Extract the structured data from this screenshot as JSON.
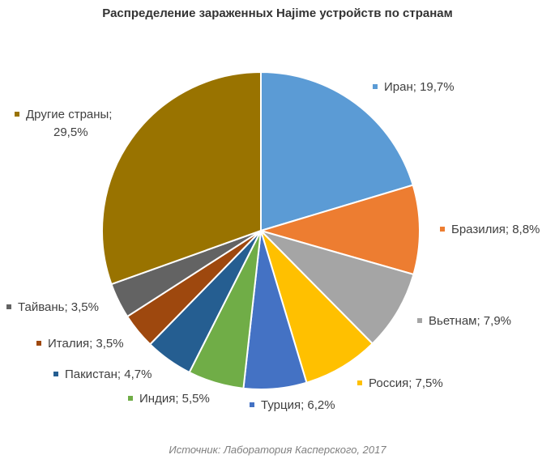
{
  "chart_data": {
    "type": "pie",
    "title": "Распределение зараженных Hajime устройств по странам",
    "source": "Источник: Лаборатория Касперского, 2017",
    "slices": [
      {
        "label": "Иран",
        "value": 19.7,
        "display": "Иран; 19,7%",
        "color": "#5b9bd5"
      },
      {
        "label": "Бразилия",
        "value": 8.8,
        "display": "Бразилия; 8,8%",
        "color": "#ed7d31"
      },
      {
        "label": "Вьетнам",
        "value": 7.9,
        "display": "Вьетнам; 7,9%",
        "color": "#a5a5a5"
      },
      {
        "label": "Россия",
        "value": 7.5,
        "display": "Россия; 7,5%",
        "color": "#ffc000"
      },
      {
        "label": "Турция",
        "value": 6.2,
        "display": "Турция; 6,2%",
        "color": "#4472c4"
      },
      {
        "label": "Индия",
        "value": 5.5,
        "display": "Индия; 5,5%",
        "color": "#70ad47"
      },
      {
        "label": "Пакистан",
        "value": 4.7,
        "display": "Пакистан; 4,7%",
        "color": "#255e91"
      },
      {
        "label": "Италия",
        "value": 3.5,
        "display": "Италия; 3,5%",
        "color": "#9e480e"
      },
      {
        "label": "Тайвань",
        "value": 3.5,
        "display": "Тайвань; 3,5%",
        "color": "#636363"
      },
      {
        "label": "Другие страны",
        "value": 29.5,
        "display_line1": "Другие страны;",
        "display_line2": "29,5%",
        "color": "#997300"
      }
    ]
  }
}
